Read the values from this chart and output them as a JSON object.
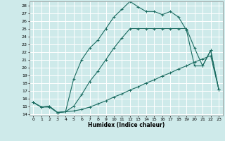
{
  "xlabel": "Humidex (Indice chaleur)",
  "bg_color": "#ceeaea",
  "grid_color": "#ffffff",
  "line_color": "#1a6b60",
  "xlim": [
    -0.5,
    23.5
  ],
  "ylim": [
    13.8,
    28.5
  ],
  "xticks": [
    0,
    1,
    2,
    3,
    4,
    5,
    6,
    7,
    8,
    9,
    10,
    11,
    12,
    13,
    14,
    15,
    16,
    17,
    18,
    19,
    20,
    21,
    22,
    23
  ],
  "yticks": [
    14,
    15,
    16,
    17,
    18,
    19,
    20,
    21,
    22,
    23,
    24,
    25,
    26,
    27,
    28
  ],
  "curve1_x": [
    0,
    1,
    2,
    3,
    4,
    5,
    6,
    7,
    8,
    9,
    10,
    11,
    12,
    13,
    14,
    15,
    16,
    17,
    18,
    19,
    20,
    21,
    22,
    23
  ],
  "curve1_y": [
    15.5,
    14.9,
    15.0,
    14.2,
    14.3,
    14.4,
    14.6,
    14.9,
    15.3,
    15.7,
    16.2,
    16.6,
    17.1,
    17.5,
    18.0,
    18.4,
    18.9,
    19.3,
    19.8,
    20.2,
    20.7,
    21.1,
    21.5,
    17.2
  ],
  "curve2_x": [
    0,
    1,
    2,
    3,
    4,
    5,
    6,
    7,
    8,
    9,
    10,
    11,
    12,
    13,
    14,
    15,
    16,
    17,
    18,
    19,
    20,
    21,
    22,
    23
  ],
  "curve2_y": [
    15.5,
    14.9,
    15.0,
    14.2,
    14.3,
    15.0,
    16.5,
    18.2,
    19.5,
    21.0,
    22.5,
    23.8,
    25.0,
    25.0,
    25.0,
    25.0,
    25.0,
    25.0,
    25.0,
    25.0,
    22.5,
    20.2,
    22.2,
    17.2
  ],
  "curve3_x": [
    0,
    1,
    2,
    3,
    4,
    5,
    6,
    7,
    8,
    9,
    10,
    11,
    12,
    13,
    14,
    15,
    16,
    17,
    18,
    19,
    20,
    21,
    22,
    23
  ],
  "curve3_y": [
    15.5,
    14.9,
    14.9,
    14.2,
    14.3,
    18.5,
    21.0,
    22.5,
    23.5,
    25.0,
    26.5,
    27.5,
    28.5,
    27.8,
    27.2,
    27.2,
    26.8,
    27.2,
    26.5,
    24.8,
    20.2,
    20.2,
    22.2,
    17.2
  ]
}
